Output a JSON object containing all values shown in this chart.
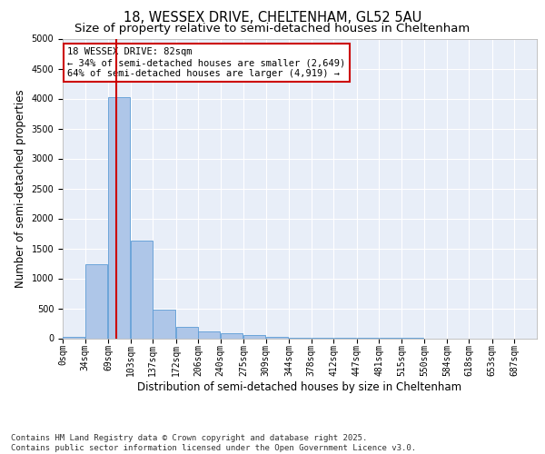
{
  "title1": "18, WESSEX DRIVE, CHELTENHAM, GL52 5AU",
  "title2": "Size of property relative to semi-detached houses in Cheltenham",
  "xlabel": "Distribution of semi-detached houses by size in Cheltenham",
  "ylabel": "Number of semi-detached properties",
  "property_size": 82,
  "bar_left_edges": [
    0,
    34,
    69,
    103,
    137,
    172,
    206,
    240,
    275,
    309,
    344,
    378,
    412,
    447,
    481,
    515,
    550,
    584,
    618,
    653
  ],
  "bar_heights": [
    30,
    1240,
    4020,
    1630,
    470,
    195,
    110,
    85,
    50,
    30,
    10,
    5,
    3,
    2,
    1,
    1,
    0,
    0,
    0,
    0
  ],
  "bin_width": 34,
  "bar_color": "#aec6e8",
  "bar_edge_color": "#5b9bd5",
  "vline_color": "#cc0000",
  "vline_x": 82,
  "ylim": [
    0,
    5000
  ],
  "yticks": [
    0,
    500,
    1000,
    1500,
    2000,
    2500,
    3000,
    3500,
    4000,
    4500,
    5000
  ],
  "annotation_title": "18 WESSEX DRIVE: 82sqm",
  "annotation_line1": "← 34% of semi-detached houses are smaller (2,649)",
  "annotation_line2": "64% of semi-detached houses are larger (4,919) →",
  "annotation_box_color": "#ffffff",
  "annotation_box_edge": "#cc0000",
  "footnote1": "Contains HM Land Registry data © Crown copyright and database right 2025.",
  "footnote2": "Contains public sector information licensed under the Open Government Licence v3.0.",
  "tick_labels": [
    "0sqm",
    "34sqm",
    "69sqm",
    "103sqm",
    "137sqm",
    "172sqm",
    "206sqm",
    "240sqm",
    "275sqm",
    "309sqm",
    "344sqm",
    "378sqm",
    "412sqm",
    "447sqm",
    "481sqm",
    "515sqm",
    "550sqm",
    "584sqm",
    "618sqm",
    "653sqm",
    "687sqm"
  ],
  "background_color": "#e8eef8",
  "grid_color": "#ffffff",
  "title_fontsize": 10.5,
  "subtitle_fontsize": 9.5,
  "axis_label_fontsize": 8.5,
  "tick_fontsize": 7,
  "annotation_fontsize": 7.5,
  "footnote_fontsize": 6.5
}
